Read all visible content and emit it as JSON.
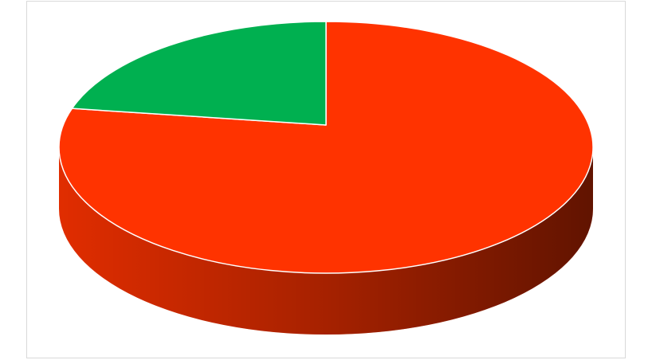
{
  "chart_data": {
    "type": "pie3d",
    "values": [
      80,
      20
    ],
    "colors": [
      "#ff3300",
      "#00b050"
    ]
  }
}
